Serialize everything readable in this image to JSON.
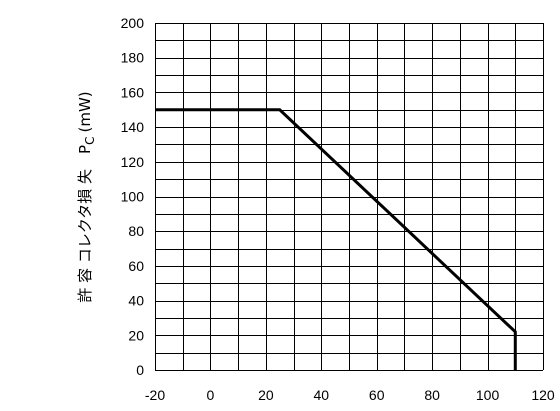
{
  "chart_data": {
    "type": "line",
    "title": "",
    "xlabel": "",
    "ylabel": "許 容 コレクタ損 失　P",
    "ylabel_subscript": "C",
    "ylabel_unit": "(mW)",
    "xlim": [
      -20,
      120
    ],
    "ylim": [
      0,
      200
    ],
    "x_ticks": [
      -20,
      0,
      20,
      40,
      60,
      80,
      100,
      120
    ],
    "y_ticks": [
      0,
      20,
      40,
      60,
      80,
      100,
      120,
      140,
      160,
      180,
      200
    ],
    "grid": true,
    "grid_x_step": 10,
    "grid_y_step": 10,
    "series": [
      {
        "x": [
          -20,
          25,
          110,
          110
        ],
        "y": [
          150,
          150,
          22,
          0
        ]
      }
    ]
  }
}
